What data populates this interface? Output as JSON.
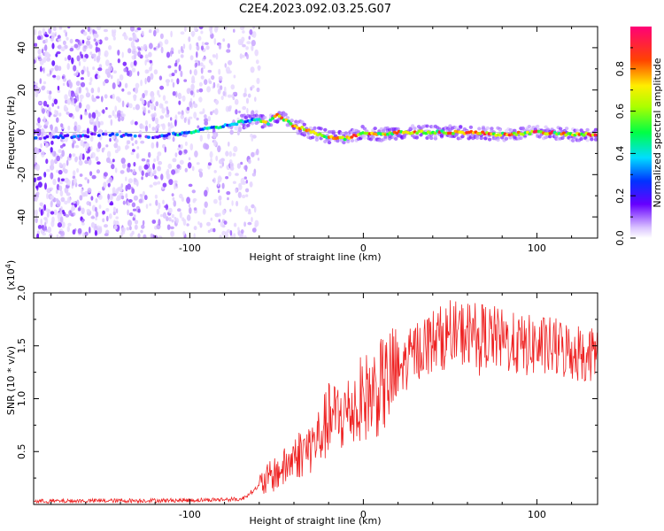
{
  "figure": {
    "title": "C2E4.2023.092.03.25.G07"
  },
  "chart_data": [
    {
      "type": "heatmap",
      "xlabel": "Height of straight line (km)",
      "ylabel": "Frequency (Hz)",
      "xlim": [
        -190,
        135
      ],
      "ylim": [
        -50,
        50
      ],
      "xticks": [
        -100,
        0,
        100
      ],
      "yticks": [
        -40,
        -20,
        0,
        20,
        40
      ],
      "colorbar": {
        "label": "Normalized spectral amplitude",
        "range": [
          0,
          1
        ],
        "ticks": [
          "0.0",
          "0.2",
          "0.4",
          "0.6",
          "0.8"
        ]
      },
      "ridge": {
        "x": [
          -190,
          -150,
          -120,
          -100,
          -80,
          -70,
          -60,
          -55,
          -50,
          -45,
          -40,
          -35,
          -30,
          -20,
          -10,
          0,
          10,
          20,
          40,
          60,
          80,
          100,
          120,
          135
        ],
        "y": [
          -3,
          -1,
          -2,
          0,
          3,
          5,
          6,
          4,
          8,
          6,
          3,
          2,
          0,
          -2,
          -3,
          0,
          -1,
          0,
          0,
          0,
          -1,
          0,
          -1,
          -1
        ]
      },
      "noise_extent_x": [
        -190,
        -60
      ]
    },
    {
      "type": "line",
      "xlabel": "Height of straight line (km)",
      "ylabel": "SNR (10 * v/v)",
      "y_multiplier": "(x10^4)",
      "xlim": [
        -190,
        135
      ],
      "ylim": [
        0,
        2.0
      ],
      "xticks": [
        -100,
        0,
        100
      ],
      "yticks": [
        "0.5",
        "1.0",
        "1.5",
        "2.0"
      ],
      "series_color": "#ee2222",
      "trend": {
        "x": [
          -190,
          -100,
          -70,
          -50,
          -45,
          -40,
          -35,
          -30,
          -25,
          -20,
          -10,
          0,
          10,
          20,
          30,
          40,
          50,
          60,
          70,
          80,
          90,
          100,
          110,
          120,
          135
        ],
        "y": [
          0.03,
          0.04,
          0.05,
          0.3,
          0.35,
          0.45,
          0.5,
          0.55,
          0.65,
          0.8,
          0.85,
          1.0,
          1.1,
          1.25,
          1.45,
          1.55,
          1.6,
          1.62,
          1.6,
          1.55,
          1.5,
          1.5,
          1.48,
          1.45,
          1.42
        ]
      }
    }
  ]
}
